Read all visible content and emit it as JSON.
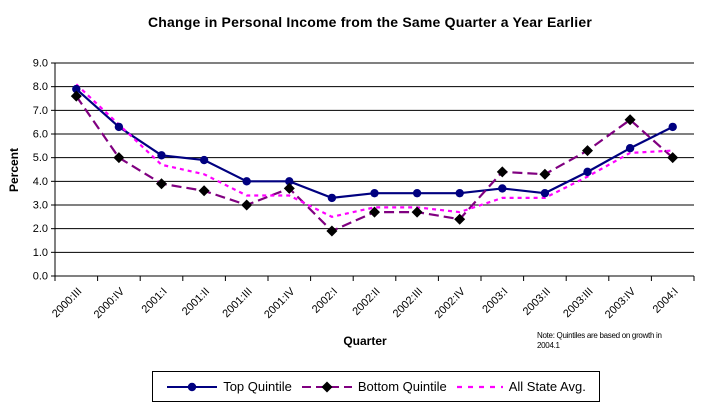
{
  "chart": {
    "title": "Change in Personal Income from the Same Quarter a Year Earlier",
    "ylabel": "Percent",
    "xlabel": "Quarter"
  },
  "note": {
    "line1": "Note: Quintiles are based on growth in",
    "line2": "2004.1"
  },
  "chart_data": {
    "type": "line",
    "title": "Change in Personal Income from the Same Quarter a Year Earlier",
    "xlabel": "Quarter",
    "ylabel": "Percent",
    "ylim": [
      0.0,
      9.0
    ],
    "ytick_step": 1.0,
    "ytick_labels": [
      "0.0",
      "1.0",
      "2.0",
      "3.0",
      "4.0",
      "5.0",
      "6.0",
      "7.0",
      "8.0",
      "9.0"
    ],
    "grid": true,
    "legend_position": "bottom",
    "categories": [
      "2000:III",
      "2000:IV",
      "2001:I",
      "2001:II",
      "2001:III",
      "2001:IV",
      "2002:I",
      "2002:II",
      "2002:III",
      "2002:IV",
      "2003:I",
      "2003:II",
      "2003:III",
      "2003:IV",
      "2004:I"
    ],
    "series": [
      {
        "name": "Top Quintile",
        "color": "#000080",
        "line_style": "solid",
        "marker": "circle",
        "marker_color": "#000080",
        "values": [
          7.9,
          6.3,
          5.1,
          4.9,
          4.0,
          4.0,
          3.3,
          3.5,
          3.5,
          3.5,
          3.7,
          3.5,
          4.4,
          5.4,
          6.3
        ]
      },
      {
        "name": "Bottom Quintile",
        "color": "#800080",
        "line_style": "dashed",
        "marker": "diamond",
        "marker_color": "#000000",
        "values": [
          7.6,
          5.0,
          3.9,
          3.6,
          3.0,
          3.7,
          1.9,
          2.7,
          2.7,
          2.4,
          4.4,
          4.3,
          5.3,
          6.6,
          5.0
        ]
      },
      {
        "name": "All State Avg.",
        "color": "#FF00FF",
        "line_style": "dotted",
        "marker": "none",
        "values": [
          8.1,
          6.4,
          4.7,
          4.3,
          3.4,
          3.4,
          2.5,
          2.9,
          2.9,
          2.7,
          3.3,
          3.3,
          4.2,
          5.2,
          5.3
        ]
      }
    ]
  }
}
